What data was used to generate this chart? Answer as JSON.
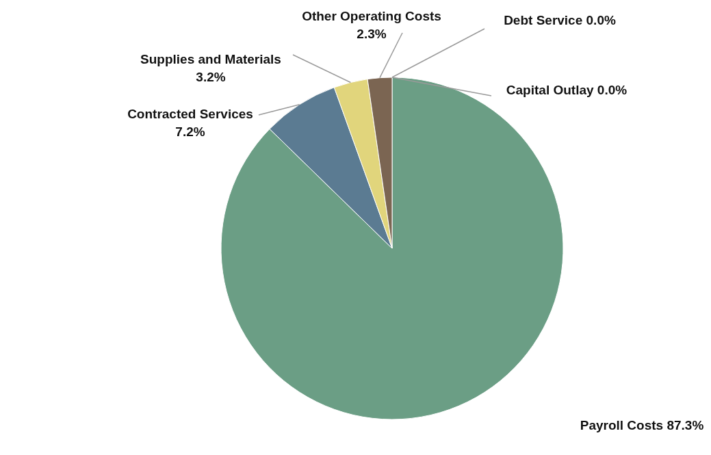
{
  "chart_data": {
    "type": "pie",
    "categories": [
      "Payroll Costs",
      "Contracted Services",
      "Supplies and Materials",
      "Other Operating Costs",
      "Debt Service",
      "Capital Outlay"
    ],
    "values": [
      87.3,
      7.2,
      3.2,
      2.3,
      0,
      0
    ],
    "value_labels": [
      "87.3%",
      "7.2%",
      "3.2%",
      "2.3%",
      "0.0%",
      "0.0%"
    ],
    "colors": [
      "#6b9e85",
      "#5b7b92",
      "#e1d57c",
      "#7b6552",
      "#8c8c8c",
      "#a0a0a0"
    ]
  }
}
